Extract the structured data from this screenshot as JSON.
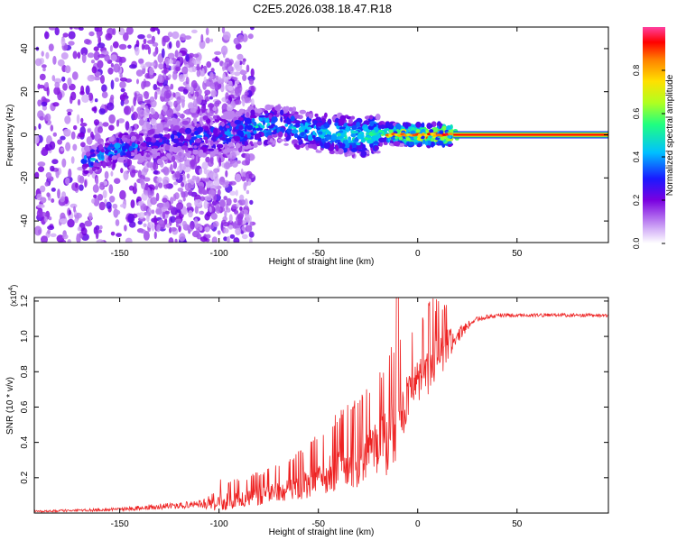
{
  "title": "C2E5.2026.038.18.47.R18",
  "chart_data": [
    {
      "type": "heatmap",
      "name": "spectrogram",
      "xlabel": "Height of straight line (km)",
      "ylabel": "Frequency (Hz)",
      "xlim": [
        -193,
        96
      ],
      "ylim": [
        -50,
        50
      ],
      "x_ticks": [
        -150,
        -100,
        -50,
        0,
        50
      ],
      "y_ticks": [
        -40,
        -20,
        0,
        20,
        40
      ],
      "colorbar": {
        "label": "Normalized spectral amplitude",
        "range": [
          0,
          1
        ],
        "ticks": [
          0.0,
          0.2,
          0.4,
          0.6,
          0.8
        ],
        "tick_labels": [
          "0.0",
          "0.2",
          "0.4",
          "0.6",
          "0.8"
        ],
        "colors": [
          "#ffffff",
          "#d8b8f8",
          "#7a00e0",
          "#1a1aff",
          "#00c0ff",
          "#20ff80",
          "#b0ff20",
          "#ffe000",
          "#ff8000",
          "#ff0000",
          "#ff40a0"
        ]
      },
      "trend": {
        "x": [
          -165,
          -150,
          -140,
          -130,
          -120,
          -110,
          -100,
          -90,
          -80,
          -70,
          -60,
          -50,
          -40,
          -30,
          -20,
          -15,
          -10,
          0,
          10,
          20,
          96
        ],
        "freq": [
          -12,
          -6,
          -5,
          -4,
          -2,
          -1,
          0,
          2,
          4,
          5,
          3,
          1,
          0,
          -1,
          0,
          1,
          0,
          0,
          0,
          0,
          0
        ],
        "amp": [
          0.35,
          0.4,
          0.3,
          0.25,
          0.25,
          0.3,
          0.3,
          0.35,
          0.45,
          0.35,
          0.4,
          0.45,
          0.5,
          0.5,
          0.55,
          0.6,
          0.7,
          0.85,
          0.9,
          0.95,
          0.95
        ]
      }
    },
    {
      "type": "line",
      "name": "snr",
      "xlabel": "Height of straight line (km)",
      "ylabel": "SNR (10 * v/v)",
      "scale_label": "(x10",
      "scale_exp": "4",
      "xlim": [
        -193,
        96
      ],
      "ylim": [
        0,
        1.22
      ],
      "x_ticks": [
        -150,
        -100,
        -50,
        0,
        50
      ],
      "y_ticks": [
        0.2,
        0.4,
        0.6,
        0.8,
        1.0,
        1.2
      ],
      "color": "#ee2222",
      "envelope": {
        "x": [
          -193,
          -150,
          -140,
          -110,
          -100,
          -90,
          -80,
          -70,
          -60,
          -50,
          -40,
          -30,
          -20,
          -15,
          -10,
          -8,
          -5,
          0,
          5,
          10,
          15,
          20,
          25,
          30,
          40,
          60,
          96
        ],
        "base": [
          0.01,
          0.02,
          0.03,
          0.05,
          0.07,
          0.09,
          0.11,
          0.14,
          0.17,
          0.22,
          0.28,
          0.32,
          0.42,
          0.45,
          0.55,
          0.6,
          0.7,
          0.78,
          0.86,
          0.9,
          0.95,
          1.0,
          1.06,
          1.1,
          1.12,
          1.12,
          1.12
        ],
        "noise": [
          0.01,
          0.02,
          0.03,
          0.04,
          0.12,
          0.1,
          0.12,
          0.14,
          0.18,
          0.22,
          0.28,
          0.32,
          0.35,
          0.45,
          0.5,
          0.35,
          0.3,
          0.28,
          0.35,
          0.3,
          0.25,
          0.1,
          0.05,
          0.03,
          0.02,
          0.02,
          0.02
        ]
      }
    }
  ]
}
